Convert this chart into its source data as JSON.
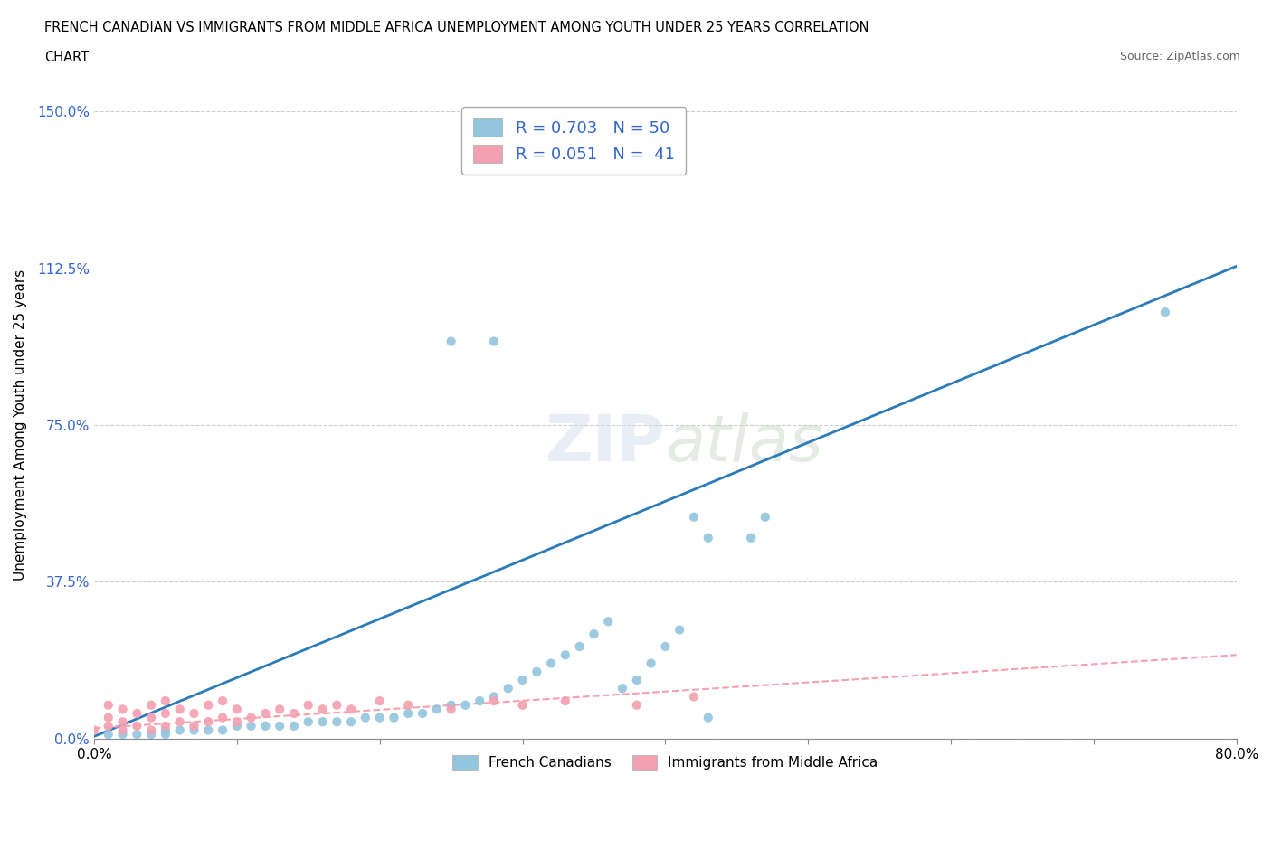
{
  "title_line1": "FRENCH CANADIAN VS IMMIGRANTS FROM MIDDLE AFRICA UNEMPLOYMENT AMONG YOUTH UNDER 25 YEARS CORRELATION",
  "title_line2": "CHART",
  "source": "Source: ZipAtlas.com",
  "ylabel": "Unemployment Among Youth under 25 years",
  "xlim": [
    0.0,
    0.8
  ],
  "ylim": [
    0.0,
    1.5
  ],
  "xticks": [
    0.0,
    0.1,
    0.2,
    0.3,
    0.4,
    0.5,
    0.6,
    0.7,
    0.8
  ],
  "xticklabels": [
    "0.0%",
    "",
    "",
    "",
    "",
    "",
    "",
    "",
    "80.0%"
  ],
  "yticks": [
    0.0,
    0.375,
    0.75,
    1.125,
    1.5
  ],
  "yticklabels": [
    "0.0%",
    "37.5%",
    "75.0%",
    "112.5%",
    "150.0%"
  ],
  "blue_color": "#92C5DE",
  "pink_color": "#F4A0B0",
  "blue_line_color": "#2B7BBA",
  "pink_line_color": "#F4A0B0",
  "legend_text_color": "#3366CC",
  "R_blue": 0.703,
  "N_blue": 50,
  "R_pink": 0.051,
  "N_pink": 41,
  "blue_scatter_x": [
    0.01,
    0.02,
    0.03,
    0.04,
    0.05,
    0.05,
    0.06,
    0.07,
    0.08,
    0.09,
    0.1,
    0.11,
    0.12,
    0.13,
    0.14,
    0.15,
    0.16,
    0.17,
    0.18,
    0.19,
    0.2,
    0.21,
    0.22,
    0.23,
    0.24,
    0.25,
    0.26,
    0.27,
    0.28,
    0.29,
    0.3,
    0.31,
    0.32,
    0.33,
    0.34,
    0.35,
    0.36,
    0.37,
    0.38,
    0.39,
    0.4,
    0.41,
    0.43,
    0.75,
    0.25,
    0.28,
    0.43,
    0.46,
    0.42,
    0.47
  ],
  "blue_scatter_y": [
    0.01,
    0.01,
    0.01,
    0.01,
    0.01,
    0.02,
    0.02,
    0.02,
    0.02,
    0.02,
    0.03,
    0.03,
    0.03,
    0.03,
    0.03,
    0.04,
    0.04,
    0.04,
    0.04,
    0.05,
    0.05,
    0.05,
    0.06,
    0.06,
    0.07,
    0.08,
    0.08,
    0.09,
    0.1,
    0.12,
    0.14,
    0.16,
    0.18,
    0.2,
    0.22,
    0.25,
    0.28,
    0.12,
    0.14,
    0.18,
    0.22,
    0.26,
    0.05,
    1.02,
    0.95,
    0.95,
    0.48,
    0.48,
    0.53,
    0.53
  ],
  "pink_scatter_x": [
    0.0,
    0.01,
    0.01,
    0.01,
    0.02,
    0.02,
    0.02,
    0.03,
    0.03,
    0.04,
    0.04,
    0.04,
    0.05,
    0.05,
    0.05,
    0.06,
    0.06,
    0.07,
    0.07,
    0.08,
    0.08,
    0.09,
    0.09,
    0.1,
    0.1,
    0.11,
    0.12,
    0.13,
    0.14,
    0.15,
    0.16,
    0.17,
    0.18,
    0.2,
    0.22,
    0.25,
    0.28,
    0.3,
    0.33,
    0.38,
    0.42
  ],
  "pink_scatter_y": [
    0.02,
    0.03,
    0.05,
    0.08,
    0.02,
    0.04,
    0.07,
    0.03,
    0.06,
    0.02,
    0.05,
    0.08,
    0.03,
    0.06,
    0.09,
    0.04,
    0.07,
    0.03,
    0.06,
    0.04,
    0.08,
    0.05,
    0.09,
    0.04,
    0.07,
    0.05,
    0.06,
    0.07,
    0.06,
    0.08,
    0.07,
    0.08,
    0.07,
    0.09,
    0.08,
    0.07,
    0.09,
    0.08,
    0.09,
    0.08,
    0.1
  ]
}
